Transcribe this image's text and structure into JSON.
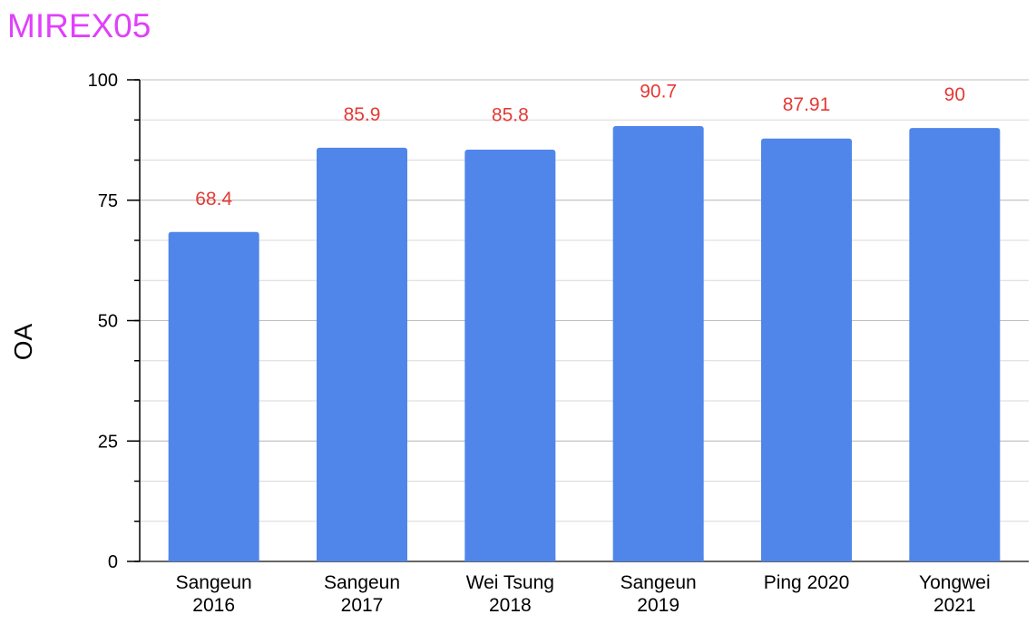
{
  "chart_data": {
    "type": "bar",
    "title": "MIREX05",
    "xlabel": "",
    "ylabel": "OA",
    "ylim": [
      0,
      100
    ],
    "yticks": [
      0,
      25,
      50,
      75,
      100
    ],
    "minor_step": 8.333,
    "grid": true,
    "bar_color": "#5086ea",
    "label_color": "#e53935",
    "title_color": "#e040fb",
    "categories": [
      [
        "Sangeun",
        "2016"
      ],
      [
        "Sangeun",
        "2017"
      ],
      [
        "Wei Tsung",
        "2018"
      ],
      [
        "Sangeun",
        "2019"
      ],
      [
        "Ping 2020"
      ],
      [
        "Yongwei",
        "2021"
      ]
    ],
    "values": [
      68.4,
      85.9,
      85.8,
      90.7,
      87.91,
      90
    ],
    "value_labels": [
      "68.4",
      "85.9",
      "85.8",
      "90.7",
      "87.91",
      "90"
    ],
    "bar_tops": [
      68.4,
      85.9,
      85.5,
      90.4,
      87.8,
      90
    ]
  }
}
